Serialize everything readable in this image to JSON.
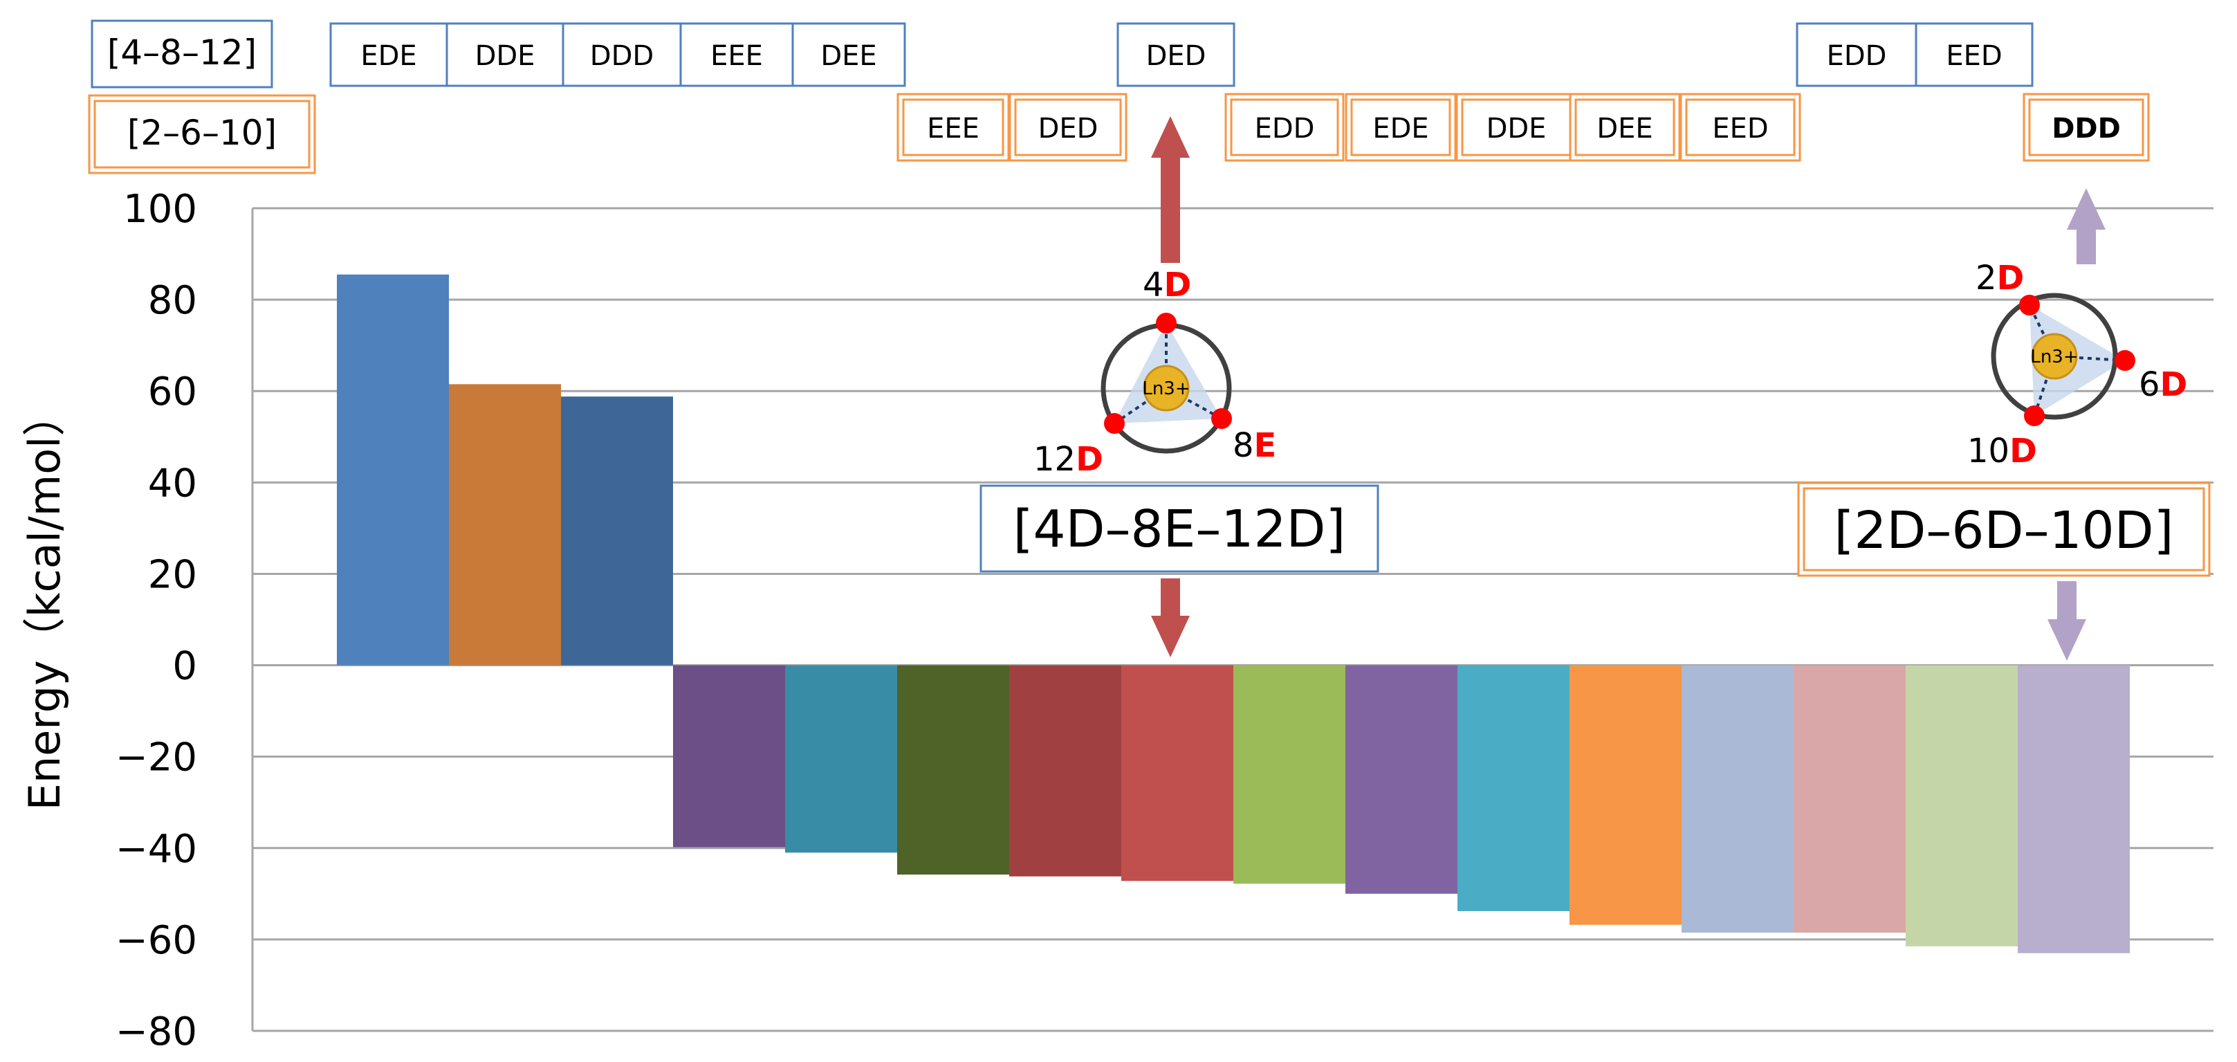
{
  "chart_data": {
    "type": "bar",
    "ylabel": "Energy（kcal/mol）",
    "ylim": [
      -80,
      100
    ],
    "yticks": [
      "100",
      "80",
      "60",
      "40",
      "20",
      "0",
      "−20",
      "−40",
      "−60",
      "−80"
    ],
    "grid": true,
    "groups": {
      "set_a": "[4–8–12]",
      "set_b": "[2–6–10]"
    },
    "top_row_labels": [
      "EDE",
      "DDE",
      "DDD",
      "EEE",
      "DEE",
      "DED",
      "EDD",
      "EED"
    ],
    "second_row_labels": [
      "EEE",
      "DED",
      "EDD",
      "EDE",
      "DDE",
      "DEE",
      "EED",
      "DDD"
    ],
    "bars": [
      {
        "label": "EDE",
        "group": "[4–8–12]",
        "value": 85.5,
        "color": "#4f81bd"
      },
      {
        "label": "DDE",
        "group": "[4–8–12]",
        "value": 61.5,
        "color": "#c97a38"
      },
      {
        "label": "DDD",
        "group": "[4–8–12]",
        "value": 58.8,
        "color": "#3e6798"
      },
      {
        "label": "EEE",
        "group": "[4–8–12]",
        "value": -39.8,
        "color": "#6b4f86"
      },
      {
        "label": "DEE",
        "group": "[4–8–12]",
        "value": -41.0,
        "color": "#398ca6"
      },
      {
        "label": "EEE",
        "group": "[2–6–10]",
        "value": -45.8,
        "color": "#4f6228"
      },
      {
        "label": "DED",
        "group": "[2–6–10]",
        "value": -46.2,
        "color": "#a04040"
      },
      {
        "label": "DED",
        "group": "[4–8–12]",
        "value": -47.2,
        "color": "#c0504d"
      },
      {
        "label": "EDD",
        "group": "[2–6–10]",
        "value": -47.8,
        "color": "#9bbb59"
      },
      {
        "label": "EDE",
        "group": "[2–6–10]",
        "value": -50.0,
        "color": "#8064a2"
      },
      {
        "label": "DDE",
        "group": "[2–6–10]",
        "value": -53.8,
        "color": "#4bacc6"
      },
      {
        "label": "DEE",
        "group": "[2–6–10]",
        "value": -56.8,
        "color": "#f79646"
      },
      {
        "label": "EDD",
        "group": "[4–8–12]",
        "value": -58.5,
        "color": "#a9b9d6"
      },
      {
        "label": "EED",
        "group": "[2–6–10]",
        "value": -58.5,
        "color": "#d9a7a7"
      },
      {
        "label": "EED",
        "group": "[4–8–12]",
        "value": -61.5,
        "color": "#c4d5a8"
      },
      {
        "label": "DDD",
        "group": "[2–6–10]",
        "value": -63.0,
        "color": "#b8aece"
      }
    ],
    "annotations": [
      {
        "label": "[4D–8E–12D]",
        "sites": [
          "4",
          "8",
          "12"
        ],
        "letters": [
          "D",
          "E",
          "D"
        ],
        "center": "Ln3+",
        "arrow_color": "#c0504d"
      },
      {
        "label": "[2D–6D–10D]",
        "sites": [
          "2",
          "6",
          "10"
        ],
        "letters": [
          "D",
          "D",
          "D"
        ],
        "center": "Ln3+",
        "arrow_color": "#b3a2c7"
      }
    ],
    "colors": {
      "blue_box": "#4f81bd",
      "orange_box": "#f79646",
      "grid": "#a6a6a6",
      "site_dot": "#ff0000"
    }
  }
}
